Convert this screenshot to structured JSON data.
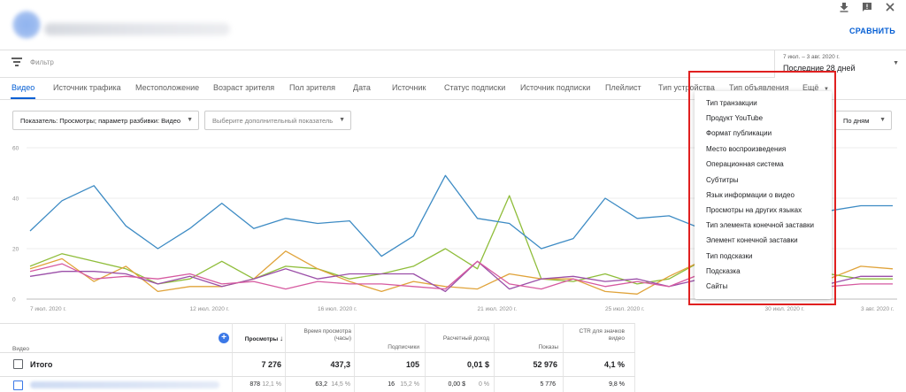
{
  "header": {
    "compare_label": "СРАВНИТЬ"
  },
  "filter": {
    "placeholder": "Фильтр"
  },
  "date": {
    "range": "7 июл. – 3 авг. 2020 г.",
    "label": "Последние 28 дней"
  },
  "tabs": [
    {
      "label": "Видео",
      "active": true
    },
    {
      "label": "Источник трафика"
    },
    {
      "label": "Местоположение"
    },
    {
      "label": "Возраст зрителя"
    },
    {
      "label": "Пол зрителя"
    },
    {
      "label": "Дата"
    },
    {
      "label": "Источник"
    },
    {
      "label": "Статус подписки"
    },
    {
      "label": "Источник подписки"
    },
    {
      "label": "Плейлист"
    },
    {
      "label": "Тип устройства"
    },
    {
      "label": "Тип объявления"
    },
    {
      "label": "Ещё"
    }
  ],
  "selectors": {
    "metric": "Показатель: Просмотры; параметр разбивки: Видео",
    "extra_metric_placeholder": "Выберите дополнительный показатель",
    "granularity": "По дням"
  },
  "menu": {
    "items": [
      "Тип транзакции",
      "Продукт YouTube",
      "Формат публикации",
      "Место воспроизведения",
      "Операционная система",
      "Субтитры",
      "Язык информации о видео",
      "Просмотры на других языках",
      "Тип элемента конечной заставки",
      "Элемент конечной заставки",
      "Тип подсказки",
      "Подсказка",
      "Сайты"
    ]
  },
  "colors": {
    "accent": "#065fd4",
    "highlight": "#e02020",
    "series_blue": "#3d8bc4",
    "series_green": "#8fbd3a",
    "series_orange": "#e0a33a",
    "series_purple": "#9b4fa8",
    "series_pink": "#d65aa0"
  },
  "chart_data": {
    "type": "line",
    "ylim": [
      0,
      60
    ],
    "y_ticks": [
      "60",
      "40",
      "20",
      "0"
    ],
    "x_tick_labels": [
      "7 июл. 2020 г.",
      "12 июл. 2020 г.",
      "16 июл. 2020 г.",
      "21 июл. 2020 г.",
      "25 июл. 2020 г.",
      "30 июл. 2020 г.",
      "3 авг. 2020 г."
    ],
    "x_tick_days": [
      0,
      5,
      9,
      14,
      18,
      23,
      27
    ],
    "days": 28,
    "series": [
      {
        "color": "#3d8bc4",
        "values": [
          27,
          39,
          45,
          29,
          20,
          28,
          38,
          28,
          32,
          30,
          31,
          17,
          25,
          49,
          32,
          30,
          20,
          24,
          40,
          32,
          33,
          28,
          29,
          25,
          28,
          35,
          37,
          37
        ]
      },
      {
        "color": "#8fbd3a",
        "values": [
          13,
          18,
          15,
          12,
          6,
          8,
          15,
          8,
          13,
          12,
          8,
          10,
          13,
          20,
          12,
          41,
          8,
          7,
          10,
          6,
          8,
          15,
          9,
          8,
          9,
          10,
          8,
          8
        ]
      },
      {
        "color": "#e0a33a",
        "values": [
          12,
          16,
          7,
          13,
          3,
          5,
          5,
          8,
          19,
          12,
          7,
          3,
          7,
          5,
          4,
          10,
          8,
          8,
          3,
          2,
          9,
          15,
          8,
          6,
          7,
          8,
          13,
          12
        ]
      },
      {
        "color": "#9b4fa8",
        "values": [
          9,
          11,
          11,
          10,
          6,
          9,
          5,
          8,
          12,
          8,
          10,
          10,
          10,
          3,
          15,
          4,
          8,
          9,
          7,
          8,
          5,
          8,
          9,
          7,
          5,
          6,
          9,
          9
        ]
      },
      {
        "color": "#d65aa0",
        "values": [
          11,
          14,
          8,
          9,
          8,
          10,
          6,
          7,
          4,
          7,
          6,
          6,
          5,
          4,
          15,
          6,
          4,
          8,
          5,
          7,
          5,
          10,
          6,
          6,
          4,
          5,
          6,
          6
        ]
      }
    ]
  },
  "table": {
    "headers": {
      "video": "Видео",
      "views": "Просмотры",
      "watch_time": "Время просмотра (часы)",
      "subscribers": "Подписчики",
      "revenue": "Расчетный доход",
      "impressions": "Показы",
      "ctr": "CTR для значков видео"
    },
    "total": {
      "label": "Итого",
      "views": "7 276",
      "watch_time": "437,3",
      "subscribers": "105",
      "revenue": "0,01 $",
      "impressions": "52 976",
      "ctr": "4,1 %"
    },
    "row1": {
      "views": "878",
      "views_pct": "12,1 %",
      "watch_time": "63,2",
      "watch_time_pct": "14,5 %",
      "subscribers": "16",
      "subscribers_pct": "15,2 %",
      "revenue": "0,00 $",
      "revenue_pct": "0 %",
      "impressions": "5 776",
      "ctr": "9,8 %"
    }
  }
}
